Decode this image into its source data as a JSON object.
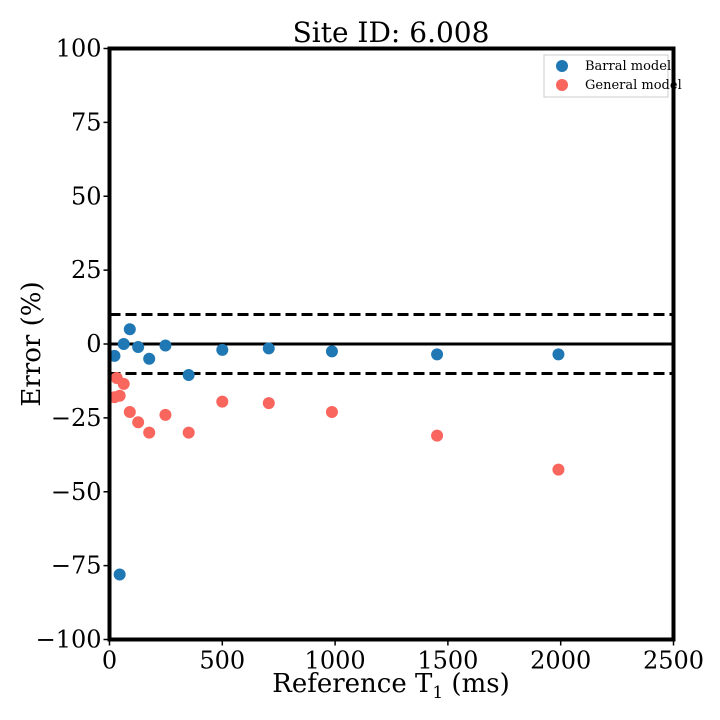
{
  "chart_data": {
    "type": "scatter",
    "title": "Site ID: 6.008",
    "xlabel": "Reference T",
    "xlabel_subscript": "1",
    "xlabel_unit": " (ms)",
    "ylabel": "Error (%)",
    "xlim": [
      0,
      2500
    ],
    "ylim": [
      -100,
      100
    ],
    "xticks": [
      0,
      500,
      1000,
      1500,
      2000,
      2500
    ],
    "yticks": [
      -100,
      -75,
      -50,
      -25,
      0,
      25,
      50,
      75,
      100
    ],
    "xtick_labels": [
      "0",
      "500",
      "1000",
      "1500",
      "2000",
      "2500"
    ],
    "ytick_labels": [
      "−100",
      "−75",
      "−50",
      "−25",
      "0",
      "25",
      "50",
      "75",
      "100"
    ],
    "reference_lines": [
      {
        "y": 0,
        "style": "solid"
      },
      {
        "y": 10,
        "style": "dashed"
      },
      {
        "y": -10,
        "style": "dashed"
      }
    ],
    "legend": {
      "position": "top-right"
    },
    "grid": false,
    "series": [
      {
        "name": "Barral model",
        "color": "#1f77b4",
        "points": [
          {
            "x": 22,
            "y": -4
          },
          {
            "x": 45,
            "y": -78
          },
          {
            "x": 63,
            "y": 0
          },
          {
            "x": 90,
            "y": 5
          },
          {
            "x": 127,
            "y": -1
          },
          {
            "x": 176,
            "y": -5
          },
          {
            "x": 248,
            "y": -0.5
          },
          {
            "x": 351,
            "y": -10.5
          },
          {
            "x": 500,
            "y": -2
          },
          {
            "x": 706,
            "y": -1.5
          },
          {
            "x": 986,
            "y": -2.5
          },
          {
            "x": 1452,
            "y": -3.5
          },
          {
            "x": 1990,
            "y": -3.5
          }
        ]
      },
      {
        "name": "General model",
        "color": "#f8665e",
        "points": [
          {
            "x": 22,
            "y": -18
          },
          {
            "x": 32,
            "y": -11.5
          },
          {
            "x": 45,
            "y": -17.5
          },
          {
            "x": 63,
            "y": -13.5
          },
          {
            "x": 90,
            "y": -23
          },
          {
            "x": 127,
            "y": -26.5
          },
          {
            "x": 176,
            "y": -30
          },
          {
            "x": 248,
            "y": -24
          },
          {
            "x": 351,
            "y": -30
          },
          {
            "x": 500,
            "y": -19.5
          },
          {
            "x": 706,
            "y": -20
          },
          {
            "x": 986,
            "y": -23
          },
          {
            "x": 1452,
            "y": -31
          },
          {
            "x": 1990,
            "y": -42.5
          }
        ]
      }
    ]
  }
}
